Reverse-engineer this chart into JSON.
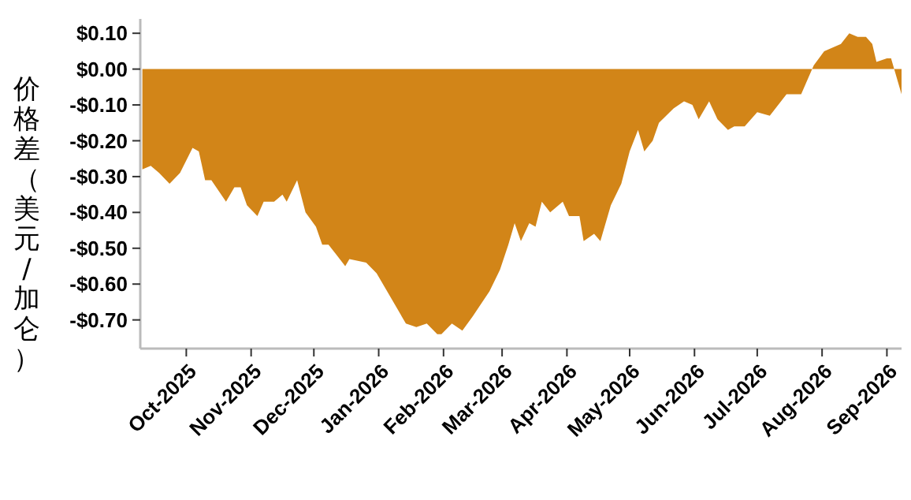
{
  "chart_data": {
    "type": "area",
    "ylabel": "价格差（美元/加仑）",
    "xlim": [
      "2025-09-09",
      "2026-09-08"
    ],
    "ylim": [
      -0.78,
      0.14
    ],
    "xticks": [
      {
        "value": "2025-10-01",
        "label": "Oct-2025"
      },
      {
        "value": "2025-11-01",
        "label": "Nov-2025"
      },
      {
        "value": "2025-12-01",
        "label": "Dec-2025"
      },
      {
        "value": "2026-01-01",
        "label": "Jan-2026"
      },
      {
        "value": "2026-02-01",
        "label": "Feb-2026"
      },
      {
        "value": "2026-03-01",
        "label": "Mar-2026"
      },
      {
        "value": "2026-04-01",
        "label": "Apr-2026"
      },
      {
        "value": "2026-05-01",
        "label": "May-2026"
      },
      {
        "value": "2026-06-01",
        "label": "Jun-2026"
      },
      {
        "value": "2026-07-01",
        "label": "Jul-2026"
      },
      {
        "value": "2026-08-01",
        "label": "Aug-2026"
      },
      {
        "value": "2026-09-01",
        "label": "Sep-2026"
      }
    ],
    "yticks": [
      {
        "value": 0.1,
        "label": "$0.10"
      },
      {
        "value": 0,
        "label": "$0.00"
      },
      {
        "value": -0.1,
        "label": "-$0.10"
      },
      {
        "value": -0.2,
        "label": "-$0.20"
      },
      {
        "value": -0.3,
        "label": "-$0.30"
      },
      {
        "value": -0.4,
        "label": "-$0.40"
      },
      {
        "value": -0.5,
        "label": "-$0.50"
      },
      {
        "value": -0.6,
        "label": "-$0.60"
      },
      {
        "value": -0.7,
        "label": "-$0.70"
      }
    ],
    "grid": false,
    "series": [
      {
        "color": "#d28518",
        "x": [
          "2025-09-10",
          "2025-09-14",
          "2025-09-18",
          "2025-09-23",
          "2025-09-28",
          "2025-10-04",
          "2025-10-07",
          "2025-10-10",
          "2025-10-13",
          "2025-10-20",
          "2025-10-24",
          "2025-10-27",
          "2025-10-30",
          "2025-11-04",
          "2025-11-07",
          "2025-11-12",
          "2025-11-16",
          "2025-11-18",
          "2025-11-23",
          "2025-11-27",
          "2025-12-02",
          "2025-12-05",
          "2025-12-08",
          "2025-12-12",
          "2025-12-16",
          "2025-12-18",
          "2025-12-26",
          "2025-12-31",
          "2026-01-06",
          "2026-01-14",
          "2026-01-19",
          "2026-01-24",
          "2026-01-29",
          "2026-01-31",
          "2026-02-05",
          "2026-02-10",
          "2026-02-15",
          "2026-02-23",
          "2026-02-28",
          "2026-03-04",
          "2026-03-07",
          "2026-03-10",
          "2026-03-14",
          "2026-03-17",
          "2026-03-20",
          "2026-03-24",
          "2026-03-30",
          "2026-04-02",
          "2026-04-07",
          "2026-04-09",
          "2026-04-14",
          "2026-04-17",
          "2026-04-22",
          "2026-04-27",
          "2026-05-01",
          "2026-05-05",
          "2026-05-08",
          "2026-05-12",
          "2026-05-15",
          "2026-05-22",
          "2026-05-27",
          "2026-05-31",
          "2026-06-03",
          "2026-06-08",
          "2026-06-12",
          "2026-06-17",
          "2026-06-20",
          "2026-06-25",
          "2026-07-01",
          "2026-07-07",
          "2026-07-15",
          "2026-07-22",
          "2026-07-28",
          "2026-08-02",
          "2026-08-10",
          "2026-08-14",
          "2026-08-18",
          "2026-08-22",
          "2026-08-25",
          "2026-08-27",
          "2026-09-01",
          "2026-09-03",
          "2026-09-05",
          "2026-09-08"
        ],
        "values": [
          -0.28,
          -0.27,
          -0.29,
          -0.32,
          -0.29,
          -0.22,
          -0.23,
          -0.31,
          -0.31,
          -0.37,
          -0.33,
          -0.33,
          -0.38,
          -0.41,
          -0.37,
          -0.37,
          -0.35,
          -0.37,
          -0.31,
          -0.4,
          -0.44,
          -0.49,
          -0.49,
          -0.52,
          -0.55,
          -0.53,
          -0.54,
          -0.57,
          -0.63,
          -0.71,
          -0.72,
          -0.71,
          -0.74,
          -0.74,
          -0.71,
          -0.73,
          -0.69,
          -0.62,
          -0.56,
          -0.49,
          -0.43,
          -0.48,
          -0.43,
          -0.44,
          -0.37,
          -0.4,
          -0.37,
          -0.41,
          -0.41,
          -0.48,
          -0.46,
          -0.48,
          -0.38,
          -0.32,
          -0.23,
          -0.17,
          -0.23,
          -0.2,
          -0.15,
          -0.11,
          -0.09,
          -0.1,
          -0.14,
          -0.09,
          -0.14,
          -0.17,
          -0.16,
          -0.16,
          -0.12,
          -0.13,
          -0.07,
          -0.07,
          0.01,
          0.05,
          0.07,
          0.1,
          0.09,
          0.09,
          0.07,
          0.02,
          0.03,
          0.03,
          -0.01,
          -0.07
        ]
      }
    ]
  }
}
